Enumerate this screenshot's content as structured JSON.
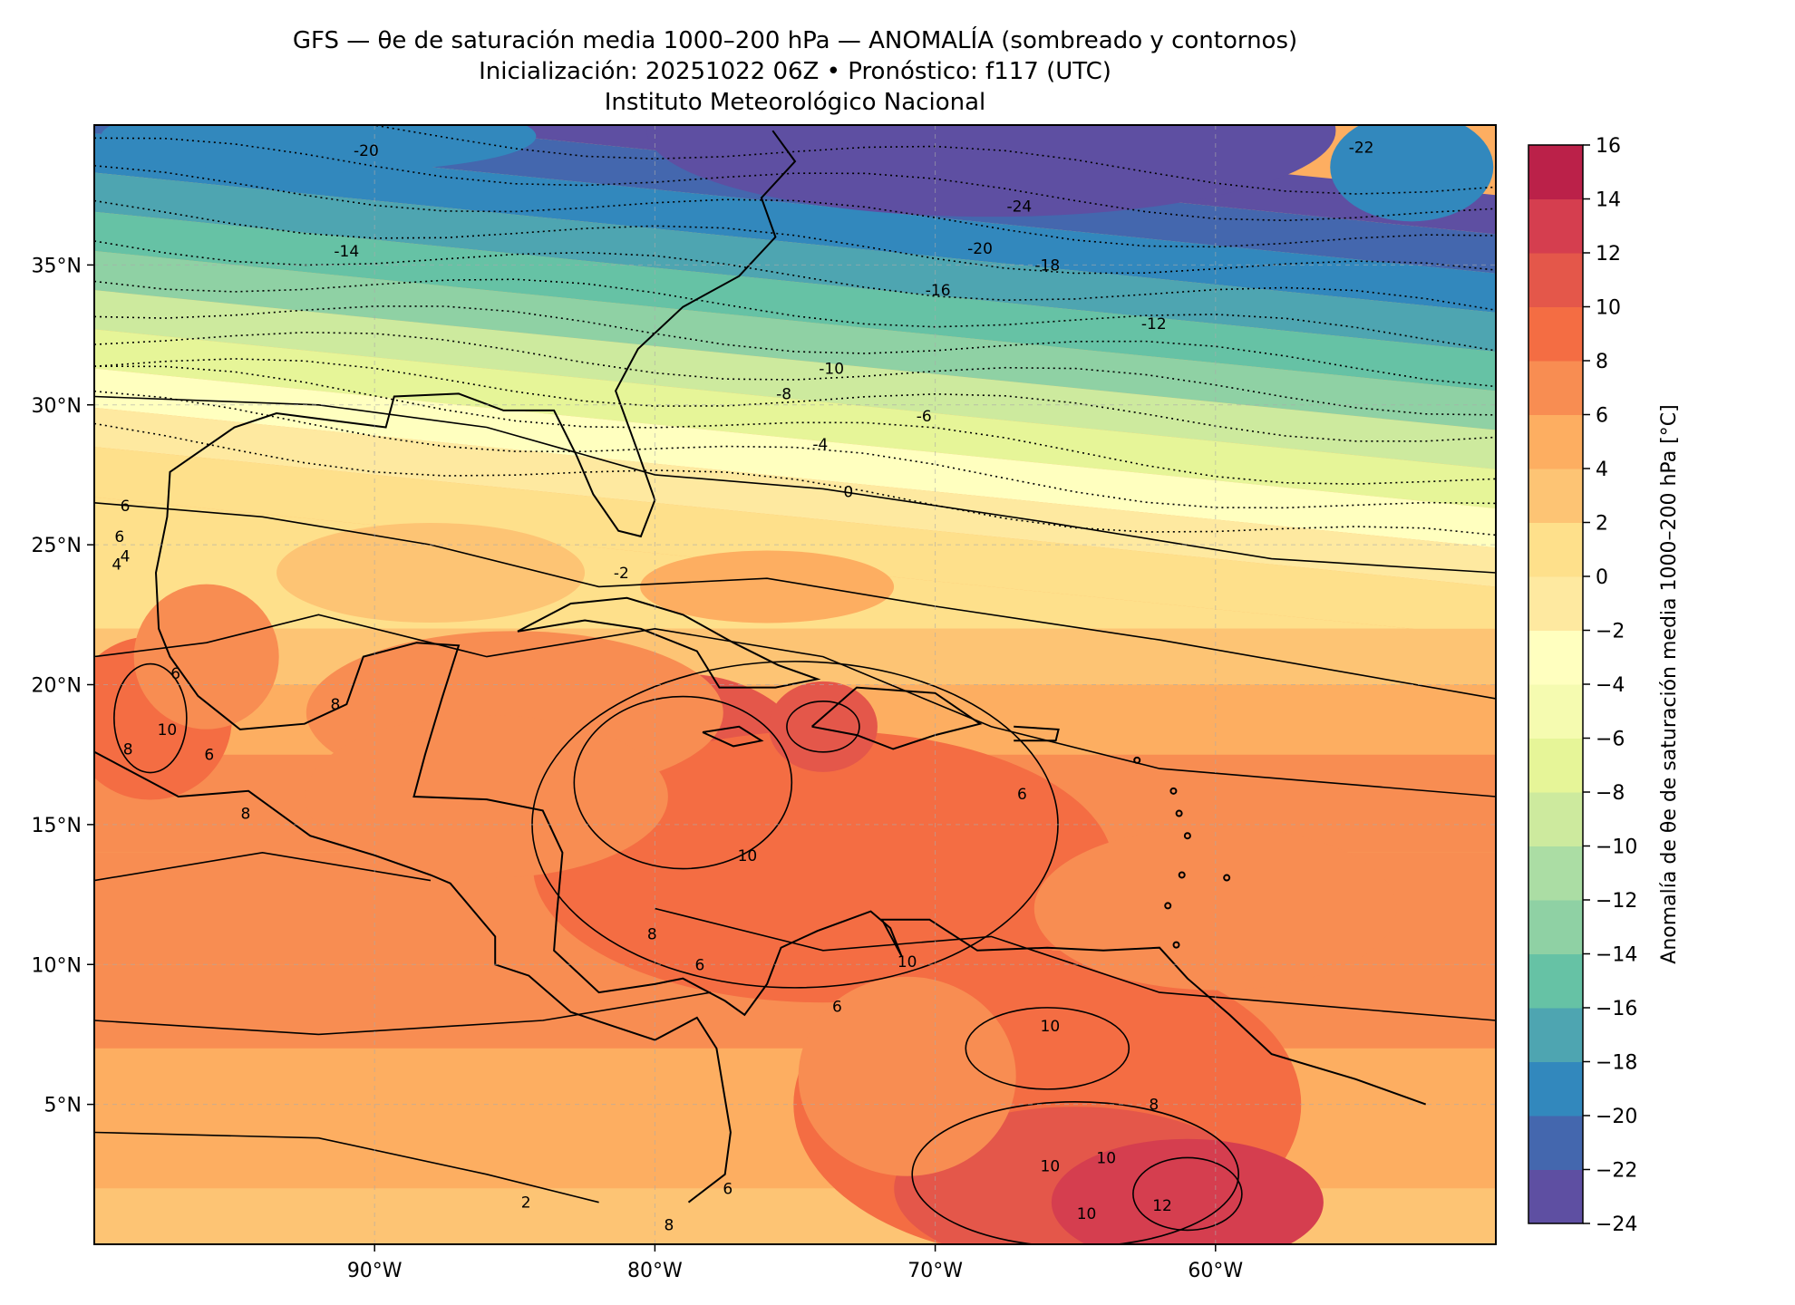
{
  "title": {
    "line1": "GFS — θe de saturación media 1000–200 hPa — ANOMALÍA (sombreado y contornos)",
    "line2": "Inicialización: 20251022 06Z   •   Pronóstico: f117 (UTC)",
    "line3": "Instituto Meteorológico Nacional"
  },
  "map": {
    "lon_range": [
      -100,
      -50
    ],
    "lat_range": [
      0,
      40
    ],
    "lon_ticks": [
      {
        "value": -90,
        "label": "90°W"
      },
      {
        "value": -80,
        "label": "80°W"
      },
      {
        "value": -70,
        "label": "70°W"
      },
      {
        "value": -60,
        "label": "60°W"
      }
    ],
    "lat_ticks": [
      {
        "value": 35,
        "label": "35°N"
      },
      {
        "value": 30,
        "label": "30°N"
      },
      {
        "value": 25,
        "label": "25°N"
      },
      {
        "value": 20,
        "label": "20°N"
      },
      {
        "value": 15,
        "label": "15°N"
      },
      {
        "value": 10,
        "label": "10°N"
      },
      {
        "value": 5,
        "label": "5°N"
      }
    ],
    "grid": true,
    "contour_labels": [
      {
        "text": "-20",
        "lon": -90.3,
        "lat": 39.1
      },
      {
        "text": "-22",
        "lon": -54.8,
        "lat": 39.2
      },
      {
        "text": "-24",
        "lon": -67.0,
        "lat": 37.1
      },
      {
        "text": "-20",
        "lon": -68.4,
        "lat": 35.6
      },
      {
        "text": "-18",
        "lon": -66.0,
        "lat": 35.0
      },
      {
        "text": "-14",
        "lon": -91.0,
        "lat": 35.5
      },
      {
        "text": "-16",
        "lon": -69.9,
        "lat": 34.1
      },
      {
        "text": "-12",
        "lon": -62.2,
        "lat": 32.9
      },
      {
        "text": "-10",
        "lon": -73.7,
        "lat": 31.3
      },
      {
        "text": "-8",
        "lon": -75.4,
        "lat": 30.4
      },
      {
        "text": "-6",
        "lon": -70.4,
        "lat": 29.6
      },
      {
        "text": "-4",
        "lon": -74.1,
        "lat": 28.6
      },
      {
        "text": "0",
        "lon": -73.1,
        "lat": 26.9
      },
      {
        "text": "-2",
        "lon": -81.2,
        "lat": 24.0
      },
      {
        "text": "6",
        "lon": -66.9,
        "lat": 16.1
      },
      {
        "text": "10",
        "lon": -76.7,
        "lat": 13.9
      },
      {
        "text": "8",
        "lon": -80.1,
        "lat": 11.1
      },
      {
        "text": "10",
        "lon": -71.0,
        "lat": 10.1
      },
      {
        "text": "10",
        "lon": -65.9,
        "lat": 7.8
      },
      {
        "text": "8",
        "lon": -62.2,
        "lat": 5.0
      },
      {
        "text": "10",
        "lon": -63.9,
        "lat": 3.1
      },
      {
        "text": "10",
        "lon": -65.9,
        "lat": 2.8
      },
      {
        "text": "12",
        "lon": -61.9,
        "lat": 1.4
      },
      {
        "text": "10",
        "lon": -64.6,
        "lat": 1.1
      },
      {
        "text": "6",
        "lon": -77.4,
        "lat": 2.0
      },
      {
        "text": "8",
        "lon": -79.5,
        "lat": 0.7
      },
      {
        "text": "2",
        "lon": -84.6,
        "lat": 1.5
      },
      {
        "text": "8",
        "lon": -91.4,
        "lat": 19.3
      },
      {
        "text": "8",
        "lon": -98.8,
        "lat": 17.7
      },
      {
        "text": "10",
        "lon": -97.4,
        "lat": 18.4
      },
      {
        "text": "6",
        "lon": -95.9,
        "lat": 17.5
      },
      {
        "text": "6",
        "lon": -97.1,
        "lat": 20.4
      },
      {
        "text": "8",
        "lon": -94.6,
        "lat": 15.4
      },
      {
        "text": "6",
        "lon": -98.9,
        "lat": 26.4
      },
      {
        "text": "6",
        "lon": -99.1,
        "lat": 25.3
      },
      {
        "text": "4",
        "lon": -99.2,
        "lat": 24.3
      },
      {
        "text": "4",
        "lon": -98.9,
        "lat": 24.6
      },
      {
        "text": "6",
        "lon": -78.4,
        "lat": 10.0
      },
      {
        "text": "6",
        "lon": -73.5,
        "lat": 8.5
      }
    ]
  },
  "colorbar": {
    "label": "Anomalía de θe de saturación media 1000–200 hPa [°C]",
    "levels": [
      -24,
      -22,
      -20,
      -18,
      -16,
      -14,
      -12,
      -10,
      -8,
      -6,
      -4,
      -2,
      0,
      2,
      4,
      6,
      8,
      10,
      12,
      14,
      16
    ],
    "tick_labels": [
      "−24",
      "−22",
      "−20",
      "−18",
      "−16",
      "−14",
      "−12",
      "−10",
      "−8",
      "−6",
      "−4",
      "−2",
      "0",
      "2",
      "4",
      "6",
      "8",
      "10",
      "12",
      "14",
      "16"
    ],
    "colors": [
      "#5e4fa2",
      "#4467ae",
      "#3288bd",
      "#4ea5b1",
      "#66c2a5",
      "#8fd1a4",
      "#abdda4",
      "#cdea9e",
      "#e6f598",
      "#f5fbb0",
      "#ffffbf",
      "#fee9a0",
      "#fee08b",
      "#fdc474",
      "#fdae61",
      "#f88d52",
      "#f46d43",
      "#e4574a",
      "#d53e4f",
      "#bb2149",
      "#9e0142"
    ]
  },
  "chart_data": {
    "type": "heatmap",
    "title": "GFS — θe de saturación media 1000–200 hPa — ANOMALÍA (sombreado y contornos)",
    "xlabel": "",
    "ylabel": "",
    "x_range": [
      -100,
      -50
    ],
    "y_range": [
      0,
      40
    ],
    "colorbar_label": "Anomalía de θe de saturación media 1000–200 hPa [°C]",
    "colorbar_range": [
      -24,
      16
    ],
    "grid": true,
    "fields": [
      {
        "anomaly": -24,
        "lon": -70,
        "lat": 38.5
      },
      {
        "anomaly": -20,
        "lon": -88,
        "lat": 38.5
      },
      {
        "anomaly": -16,
        "lon": -80,
        "lat": 34.5
      },
      {
        "anomaly": -12,
        "lon": -62,
        "lat": 33
      },
      {
        "anomaly": -8,
        "lon": -72,
        "lat": 30.5
      },
      {
        "anomaly": -4,
        "lon": -74,
        "lat": 28.5
      },
      {
        "anomaly": 0,
        "lon": -70,
        "lat": 26
      },
      {
        "anomaly": 4,
        "lon": -64,
        "lat": 20
      },
      {
        "anomaly": 6,
        "lon": -66,
        "lat": 15.5
      },
      {
        "anomaly": 8,
        "lon": -84,
        "lat": 18
      },
      {
        "anomaly": 10,
        "lon": -79,
        "lat": 16.5
      },
      {
        "anomaly": 12,
        "lon": -61,
        "lat": 2
      }
    ]
  }
}
